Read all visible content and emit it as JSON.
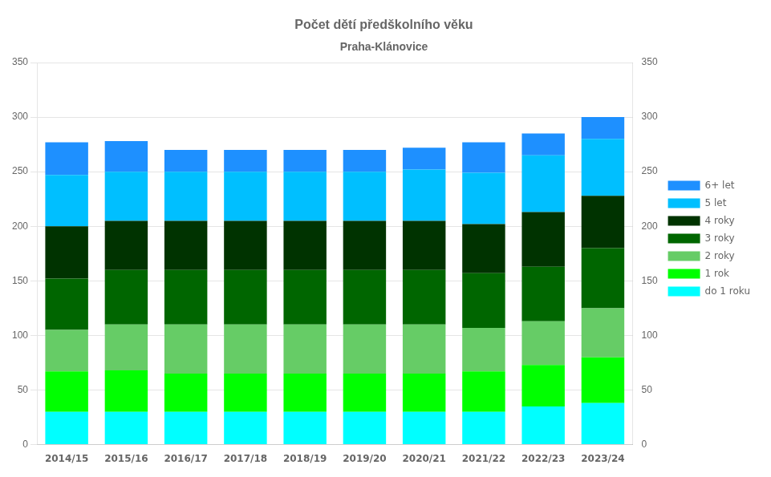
{
  "chart_data": {
    "type": "bar",
    "title": "Počet dětí předškolního věku",
    "subtitle": "Praha-Klánovice",
    "categories": [
      "2014/15",
      "2015/16",
      "2016/17",
      "2017/18",
      "2018/19",
      "2019/20",
      "2020/21",
      "2021/22",
      "2022/23",
      "2023/24"
    ],
    "series": [
      {
        "name": "do 1 roku",
        "color": "#00FFFF",
        "values": [
          30,
          30,
          30,
          30,
          30,
          30,
          30,
          30,
          35,
          38
        ]
      },
      {
        "name": "1 rok",
        "color": "#00FF00",
        "values": [
          37,
          38,
          35,
          35,
          35,
          35,
          35,
          37,
          38,
          42
        ]
      },
      {
        "name": "2 roky",
        "color": "#66CC66",
        "values": [
          38,
          42,
          45,
          45,
          45,
          45,
          45,
          40,
          40,
          45
        ]
      },
      {
        "name": "3 roky",
        "color": "#006600",
        "values": [
          47,
          50,
          50,
          50,
          50,
          50,
          50,
          50,
          50,
          55
        ]
      },
      {
        "name": "4 roky",
        "color": "#003300",
        "values": [
          48,
          45,
          45,
          45,
          45,
          45,
          45,
          45,
          50,
          48
        ]
      },
      {
        "name": "5 let",
        "color": "#00BFFF",
        "values": [
          47,
          45,
          45,
          45,
          45,
          45,
          47,
          47,
          52,
          52
        ]
      },
      {
        "name": "6+ let",
        "color": "#1E90FF",
        "values": [
          30,
          28,
          20,
          20,
          20,
          20,
          20,
          28,
          20,
          20
        ]
      }
    ],
    "stacked": true,
    "ylim": [
      0,
      350
    ],
    "yticks": [
      0,
      50,
      100,
      150,
      200,
      250,
      300,
      350
    ],
    "y2lim": [
      0,
      350
    ],
    "y2ticks": [
      0,
      50,
      100,
      150,
      200,
      250,
      300,
      350
    ],
    "grid": true,
    "legend": "right"
  }
}
